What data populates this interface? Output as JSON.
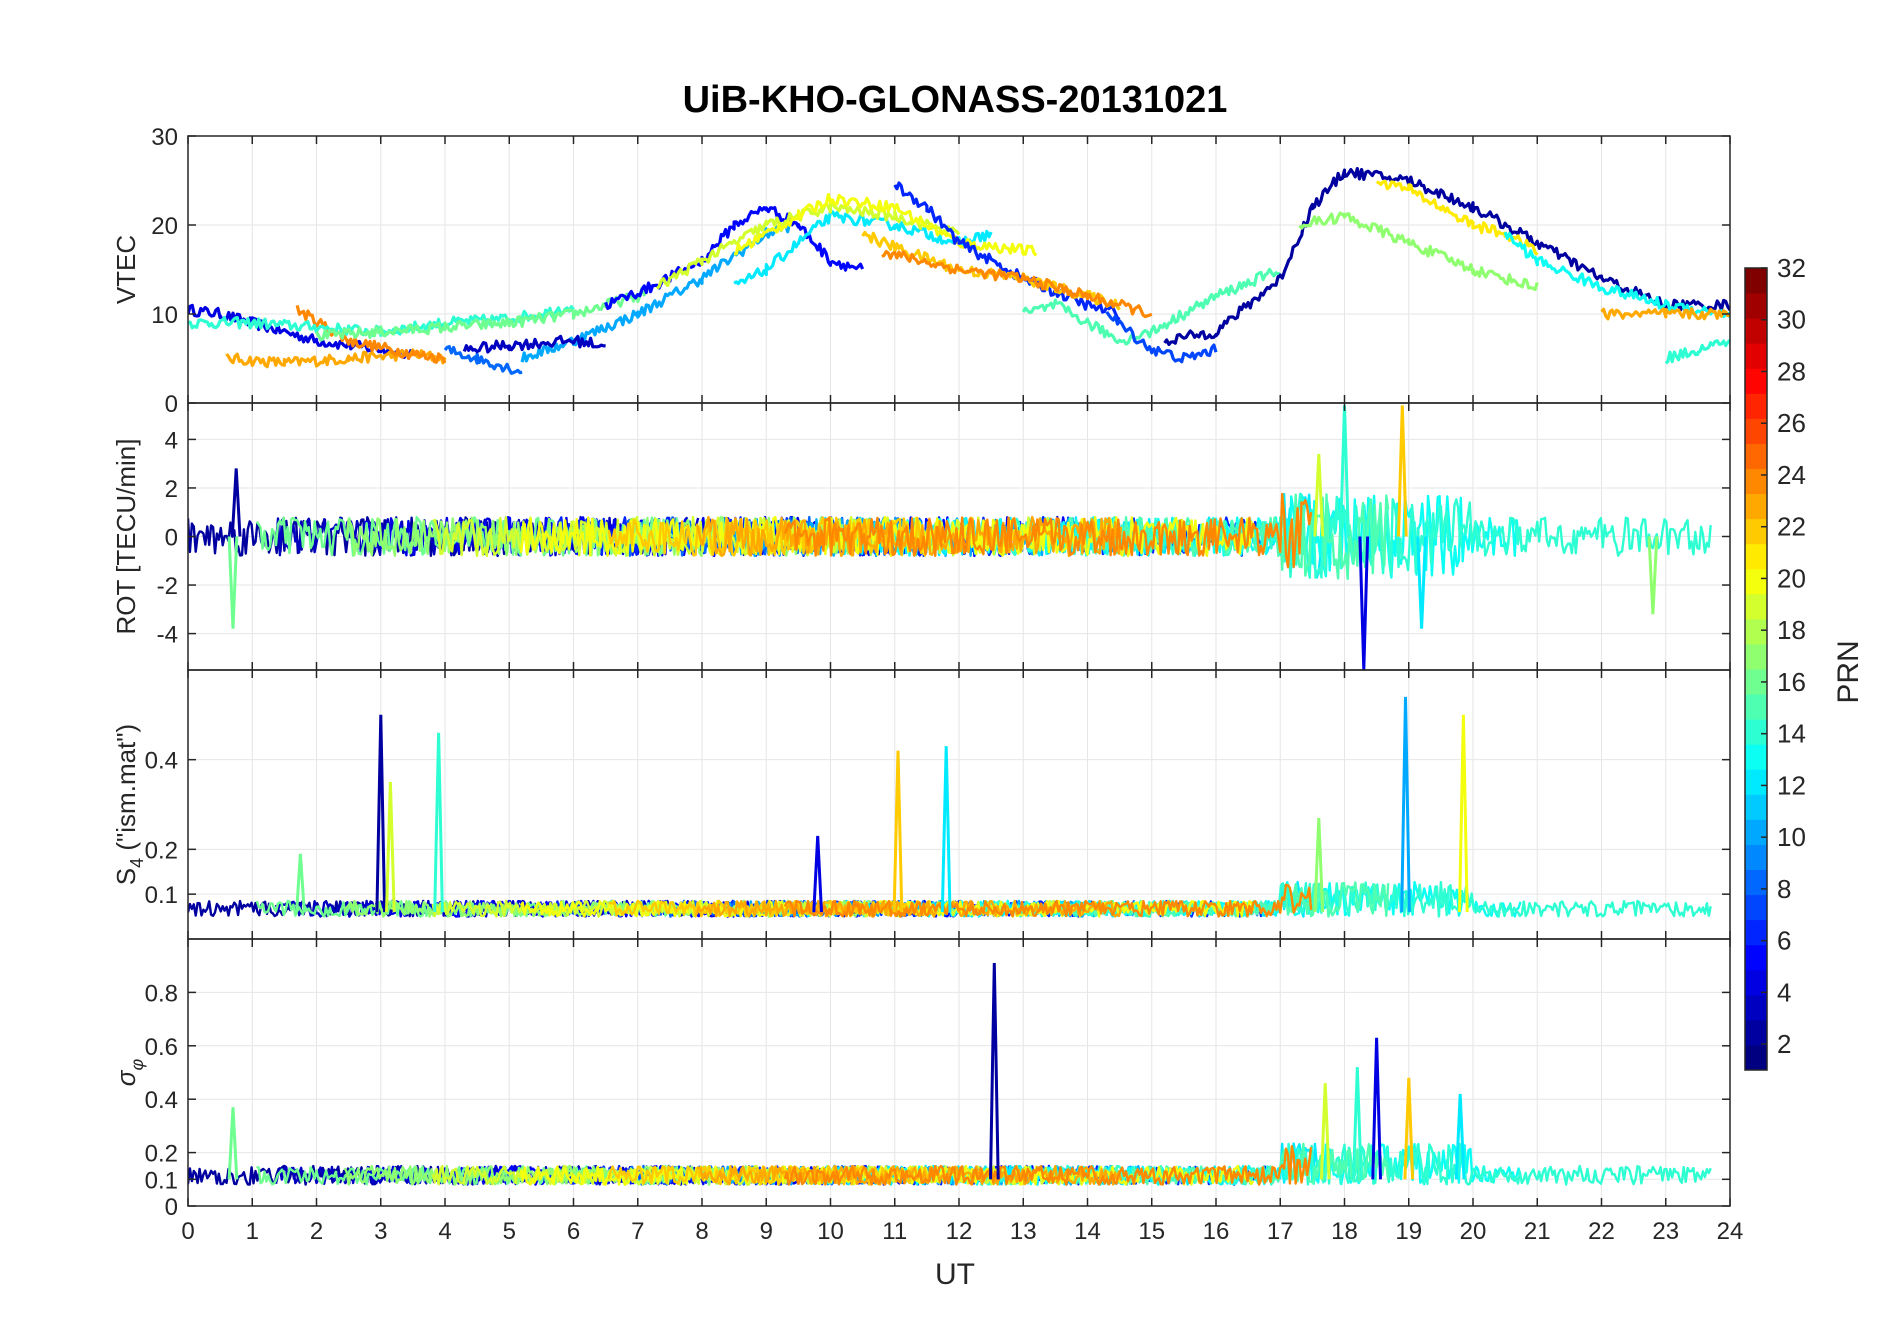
{
  "figure": {
    "title": "UiB-KHO-GLONASS-20131021",
    "xlabel": "UT",
    "colorbar_label": "PRN"
  },
  "colors": {
    "background": "#ffffff",
    "axes": "#262626",
    "grid": "#e6e6e6",
    "colormap": "jet"
  },
  "chart_data": [
    {
      "type": "line",
      "panel": "VTEC",
      "ylabel": "VTEC",
      "xlim": [
        0,
        24
      ],
      "ylim": [
        0,
        30
      ],
      "yticks": [
        0,
        10,
        20,
        30
      ],
      "grid": true,
      "series": [
        {
          "prn": 4,
          "x": [
            0,
            0.5,
            1,
            2,
            3,
            3.5
          ],
          "y": [
            10.5,
            10,
            9,
            7,
            6,
            5.5
          ]
        },
        {
          "prn": 23,
          "x": [
            0.6,
            1.5,
            2.5,
            3.5,
            4.0
          ],
          "y": [
            5,
            4.5,
            5,
            5.5,
            5
          ]
        },
        {
          "prn": 24,
          "x": [
            1.7,
            2.5,
            3.5,
            4.0
          ],
          "y": [
            10.5,
            7,
            5.5,
            5
          ]
        },
        {
          "prn": 14,
          "x": [
            0,
            1,
            2,
            3,
            4,
            5,
            5.5,
            6.0
          ],
          "y": [
            9,
            9,
            8.5,
            8,
            9,
            9.5,
            10,
            11
          ]
        },
        {
          "prn": 16,
          "x": [
            2,
            3,
            4,
            5,
            6,
            7,
            7.2
          ],
          "y": [
            7.5,
            8,
            8.5,
            9,
            10,
            12,
            13
          ]
        },
        {
          "prn": 8,
          "x": [
            4.0,
            4.5,
            5.2
          ],
          "y": [
            6,
            5,
            3.5
          ]
        },
        {
          "prn": 10,
          "x": [
            5.2,
            6,
            7,
            8,
            9,
            9.4
          ],
          "y": [
            5,
            7,
            10,
            14,
            19,
            20
          ]
        },
        {
          "prn": 3,
          "x": [
            4.3,
            5,
            6,
            6.5
          ],
          "y": [
            6,
            6.5,
            7,
            6.5
          ]
        },
        {
          "prn": 5,
          "x": [
            6.5,
            7.2,
            8,
            8.5,
            9,
            9.5,
            10,
            10.5
          ],
          "y": [
            11,
            13,
            16,
            20,
            22,
            20,
            16,
            15
          ]
        },
        {
          "prn": 12,
          "x": [
            8.5,
            9,
            9.5,
            10,
            11,
            12,
            12.5
          ],
          "y": [
            13,
            15,
            18,
            21,
            20,
            18,
            19
          ]
        },
        {
          "prn": 19,
          "x": [
            7.3,
            8,
            9,
            10,
            11,
            12
          ],
          "y": [
            13,
            16,
            20,
            22,
            21,
            19
          ]
        },
        {
          "prn": 20,
          "x": [
            8.5,
            9.5,
            10,
            11,
            12,
            13.2
          ],
          "y": [
            17,
            21,
            23,
            22,
            18,
            17
          ]
        },
        {
          "prn": 6,
          "x": [
            11.0,
            11.5,
            12,
            13,
            14,
            14.5
          ],
          "y": [
            24.5,
            22,
            18,
            14,
            11,
            10
          ]
        },
        {
          "prn": 22,
          "x": [
            10.5,
            11,
            12,
            13,
            13.5,
            14,
            14.5
          ],
          "y": [
            19,
            17.5,
            15,
            14,
            13,
            12,
            11
          ]
        },
        {
          "prn": 24,
          "x": [
            10.8,
            12,
            13,
            14,
            15
          ],
          "y": [
            17,
            15,
            14,
            12,
            10
          ]
        },
        {
          "prn": 15,
          "x": [
            13,
            13.5,
            14,
            14.5,
            15,
            15.5,
            16,
            17
          ],
          "y": [
            10,
            11,
            9,
            7,
            8,
            10,
            12,
            15
          ]
        },
        {
          "prn": 7,
          "x": [
            14.3,
            15,
            15.5,
            16
          ],
          "y": [
            10,
            6,
            5,
            6
          ]
        },
        {
          "prn": 2,
          "x": [
            15.2,
            16,
            17,
            17.5,
            18,
            19,
            20,
            21,
            22,
            23,
            24
          ],
          "y": [
            7,
            8,
            14,
            22,
            26,
            25,
            22,
            18,
            14,
            11,
            11
          ]
        },
        {
          "prn": 17,
          "x": [
            17.3,
            18,
            19,
            20,
            21
          ],
          "y": [
            20,
            21,
            18,
            15,
            13
          ]
        },
        {
          "prn": 21,
          "x": [
            18.5,
            19,
            19.5,
            20,
            20.5,
            21
          ],
          "y": [
            25,
            24,
            22,
            20,
            19,
            17
          ]
        },
        {
          "prn": 13,
          "x": [
            20.5,
            21,
            22,
            23,
            24
          ],
          "y": [
            19,
            16,
            13,
            11,
            10
          ]
        },
        {
          "prn": 23,
          "x": [
            22,
            23,
            24
          ],
          "y": [
            10,
            10,
            10
          ]
        },
        {
          "prn": 14,
          "x": [
            23,
            23.5,
            24
          ],
          "y": [
            5,
            6,
            7
          ]
        }
      ]
    },
    {
      "type": "line",
      "panel": "ROT",
      "ylabel": "ROT [TECU/min]",
      "xlim": [
        0,
        24
      ],
      "ylim": [
        -5.5,
        5.5
      ],
      "yticks": [
        -4,
        -2,
        0,
        2,
        4
      ],
      "grid": true,
      "notable_peaks": [
        {
          "x": 0.7,
          "y": -3.8
        },
        {
          "x": 0.75,
          "y": 2.8
        },
        {
          "x": 17.6,
          "y": 3.4
        },
        {
          "x": 18.0,
          "y": 5.4
        },
        {
          "x": 18.3,
          "y": -5.5
        },
        {
          "x": 18.9,
          "y": 5.4
        },
        {
          "x": 19.2,
          "y": -3.8
        },
        {
          "x": 22.8,
          "y": -3.2
        }
      ]
    },
    {
      "type": "line",
      "panel": "S4",
      "ylabel": "S_4 (\"ism.mat\")",
      "xlim": [
        0,
        24
      ],
      "ylim": [
        0,
        0.6
      ],
      "yticks": [
        0.1,
        0.2,
        0.4
      ],
      "grid": true,
      "notable_peaks": [
        {
          "x": 1.75,
          "y": 0.19
        },
        {
          "x": 3.0,
          "y": 0.5
        },
        {
          "x": 3.15,
          "y": 0.35
        },
        {
          "x": 3.9,
          "y": 0.46
        },
        {
          "x": 9.8,
          "y": 0.23
        },
        {
          "x": 11.05,
          "y": 0.42
        },
        {
          "x": 11.8,
          "y": 0.43
        },
        {
          "x": 17.6,
          "y": 0.27
        },
        {
          "x": 18.95,
          "y": 0.54
        },
        {
          "x": 19.85,
          "y": 0.5
        }
      ]
    },
    {
      "type": "line",
      "panel": "sigma_phi",
      "ylabel": "σ φ",
      "xlim": [
        0,
        24
      ],
      "ylim": [
        0,
        1.0
      ],
      "yticks": [
        0,
        0.1,
        0.2,
        0.4,
        0.6,
        0.8
      ],
      "xticks": [
        0,
        1,
        2,
        3,
        4,
        5,
        6,
        7,
        8,
        9,
        10,
        11,
        12,
        13,
        14,
        15,
        16,
        17,
        18,
        19,
        20,
        21,
        22,
        23,
        24
      ],
      "grid": true,
      "notable_peaks": [
        {
          "x": 0.7,
          "y": 0.37
        },
        {
          "x": 12.55,
          "y": 0.91
        },
        {
          "x": 17.7,
          "y": 0.46
        },
        {
          "x": 18.2,
          "y": 0.52
        },
        {
          "x": 18.5,
          "y": 0.63
        },
        {
          "x": 19.0,
          "y": 0.48
        },
        {
          "x": 19.8,
          "y": 0.42
        }
      ]
    },
    {
      "type": "heatmap",
      "panel": "colorbar",
      "label": "PRN",
      "range": [
        1,
        32
      ],
      "ticks": [
        2,
        4,
        6,
        8,
        10,
        12,
        14,
        16,
        18,
        20,
        22,
        24,
        26,
        28,
        30,
        32
      ]
    }
  ]
}
